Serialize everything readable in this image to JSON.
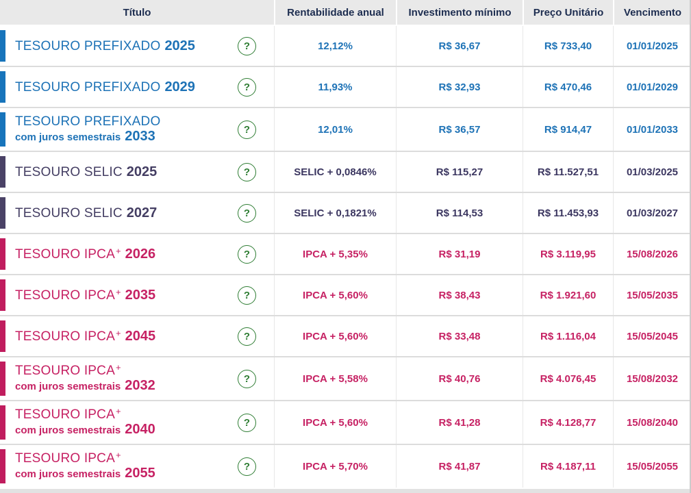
{
  "table": {
    "headers": [
      "Título",
      "Rentabilidade anual",
      "Investimento mínimo",
      "Preço Unitário",
      "Vencimento"
    ],
    "help_label": "?",
    "colors": {
      "header_bg": "#e9e9e9",
      "header_text": "#1d2d50",
      "help_green": "#2e7d33",
      "prefixado": {
        "bar": "#1774bb",
        "text": "#1d72b6",
        "value": "#1d72b6"
      },
      "selic": {
        "bar": "#4a4266",
        "text": "#443e63",
        "value": "#3b3660"
      },
      "ipca": {
        "bar": "#c01d5e",
        "text": "#c62163",
        "value": "#c62163"
      }
    },
    "rows": [
      {
        "type": "prefixado",
        "name": "TESOURO PREFIXADO",
        "sup": "",
        "subtitle": "",
        "year": "2025",
        "rate": "12,12%",
        "min_investment": "R$ 36,67",
        "unit_price": "R$ 733,40",
        "maturity": "01/01/2025"
      },
      {
        "type": "prefixado",
        "name": "TESOURO PREFIXADO",
        "sup": "",
        "subtitle": "",
        "year": "2029",
        "rate": "11,93%",
        "min_investment": "R$ 32,93",
        "unit_price": "R$ 470,46",
        "maturity": "01/01/2029"
      },
      {
        "type": "prefixado",
        "name": "TESOURO PREFIXADO",
        "sup": "",
        "subtitle": "com juros semestrais",
        "year": "2033",
        "rate": "12,01%",
        "min_investment": "R$ 36,57",
        "unit_price": "R$ 914,47",
        "maturity": "01/01/2033"
      },
      {
        "type": "selic",
        "name": "TESOURO SELIC",
        "sup": "",
        "subtitle": "",
        "year": "2025",
        "rate": "SELIC + 0,0846%",
        "min_investment": "R$ 115,27",
        "unit_price": "R$ 11.527,51",
        "maturity": "01/03/2025"
      },
      {
        "type": "selic",
        "name": "TESOURO SELIC",
        "sup": "",
        "subtitle": "",
        "year": "2027",
        "rate": "SELIC + 0,1821%",
        "min_investment": "R$ 114,53",
        "unit_price": "R$ 11.453,93",
        "maturity": "01/03/2027"
      },
      {
        "type": "ipca",
        "name": "TESOURO IPCA",
        "sup": "+",
        "subtitle": "",
        "year": "2026",
        "rate": "IPCA + 5,35%",
        "min_investment": "R$ 31,19",
        "unit_price": "R$ 3.119,95",
        "maturity": "15/08/2026"
      },
      {
        "type": "ipca",
        "name": "TESOURO IPCA",
        "sup": "+",
        "subtitle": "",
        "year": "2035",
        "rate": "IPCA + 5,60%",
        "min_investment": "R$ 38,43",
        "unit_price": "R$ 1.921,60",
        "maturity": "15/05/2035"
      },
      {
        "type": "ipca",
        "name": "TESOURO IPCA",
        "sup": "+",
        "subtitle": "",
        "year": "2045",
        "rate": "IPCA + 5,60%",
        "min_investment": "R$ 33,48",
        "unit_price": "R$ 1.116,04",
        "maturity": "15/05/2045"
      },
      {
        "type": "ipca",
        "name": "TESOURO IPCA",
        "sup": "+",
        "subtitle": "com juros semestrais",
        "year": "2032",
        "rate": "IPCA + 5,58%",
        "min_investment": "R$ 40,76",
        "unit_price": "R$ 4.076,45",
        "maturity": "15/08/2032"
      },
      {
        "type": "ipca",
        "name": "TESOURO IPCA",
        "sup": "+",
        "subtitle": "com juros semestrais",
        "year": "2040",
        "rate": "IPCA + 5,60%",
        "min_investment": "R$ 41,28",
        "unit_price": "R$ 4.128,77",
        "maturity": "15/08/2040"
      },
      {
        "type": "ipca",
        "name": "TESOURO IPCA",
        "sup": "+",
        "subtitle": "com juros semestrais",
        "year": "2055",
        "rate": "IPCA + 5,70%",
        "min_investment": "R$ 41,87",
        "unit_price": "R$ 4.187,11",
        "maturity": "15/05/2055"
      }
    ]
  }
}
